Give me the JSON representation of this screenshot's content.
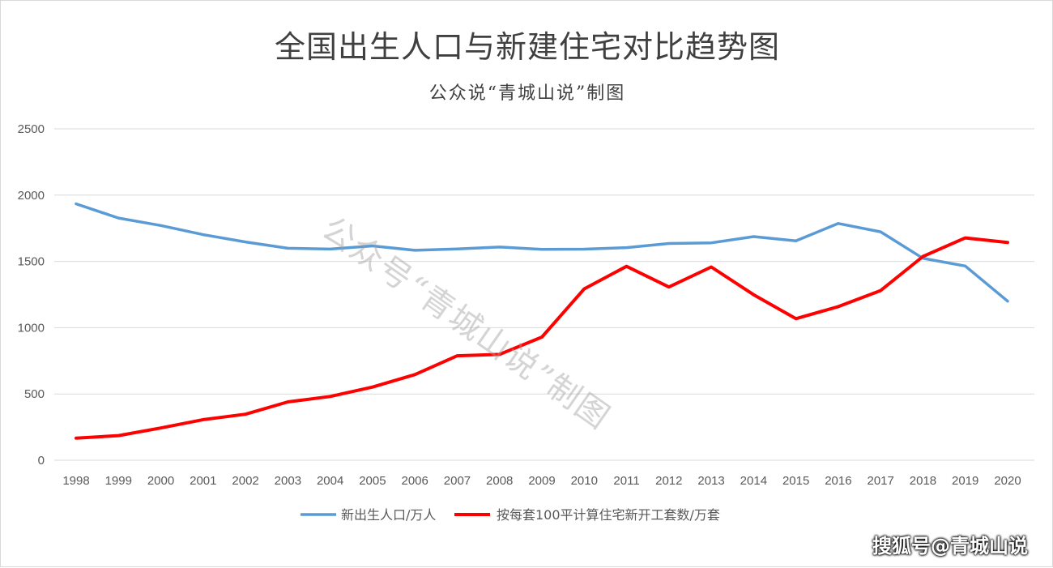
{
  "chart_data": {
    "type": "line",
    "title": "全国出生人口与新建住宅对比趋势图",
    "subtitle": "公众说“青城山说”制图",
    "categories": [
      "1998",
      "1999",
      "2000",
      "2001",
      "2002",
      "2003",
      "2004",
      "2005",
      "2006",
      "2007",
      "2008",
      "2009",
      "2010",
      "2011",
      "2012",
      "2013",
      "2014",
      "2015",
      "2016",
      "2017",
      "2018",
      "2019",
      "2020"
    ],
    "series": [
      {
        "name": "新出生人口/万人",
        "color": "#5b9bd5",
        "values": [
          1934,
          1827,
          1771,
          1702,
          1647,
          1599,
          1593,
          1617,
          1584,
          1594,
          1608,
          1591,
          1592,
          1604,
          1635,
          1640,
          1687,
          1655,
          1786,
          1723,
          1523,
          1465,
          1200
        ]
      },
      {
        "name": "按每套100平计算住宅新开工套数/万套",
        "color": "#ff0000",
        "values": [
          166,
          186,
          243,
          306,
          347,
          440,
          481,
          552,
          646,
          788,
          798,
          929,
          1293,
          1463,
          1307,
          1458,
          1249,
          1068,
          1159,
          1280,
          1537,
          1677,
          1643
        ]
      }
    ],
    "yticks": [
      0,
      500,
      1000,
      1500,
      2000,
      2500
    ],
    "ylim": [
      0,
      2500
    ],
    "grid": true,
    "legend_position": "bottom"
  },
  "watermark": "公众号“青城山说”制图",
  "credit": "搜狐号@青城山说"
}
